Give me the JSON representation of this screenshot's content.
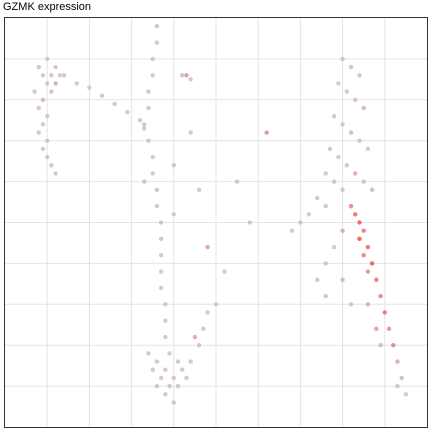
{
  "chart_data": {
    "type": "scatter",
    "title": "GZMK expression",
    "xlabel": "",
    "ylabel": "",
    "xlim": [
      0,
      100
    ],
    "ylim": [
      0,
      100
    ],
    "grid": true,
    "legend": "none",
    "colors": {
      "low": "#c8c4c6",
      "high": "#f0302a",
      "grid": "#e4e4e4",
      "border": "#333333"
    },
    "series": [
      {
        "values": [
          [
            8,
            88,
            0.1
          ],
          [
            9,
            86,
            0.1
          ],
          [
            10,
            84,
            0.1
          ],
          [
            7,
            82,
            0.1
          ],
          [
            9,
            80,
            0.2
          ],
          [
            8,
            78,
            0.1
          ],
          [
            10,
            76,
            0.1
          ],
          [
            9,
            74,
            0.1
          ],
          [
            8,
            72,
            0.1
          ],
          [
            10,
            70,
            0.1
          ],
          [
            11,
            86,
            0.1
          ],
          [
            12,
            84,
            0.3
          ],
          [
            11,
            82,
            0.1
          ],
          [
            10,
            90,
            0.1
          ],
          [
            12,
            88,
            0.1
          ],
          [
            13,
            86,
            0.1
          ],
          [
            9,
            68,
            0.1
          ],
          [
            10,
            66,
            0.1
          ],
          [
            11,
            64,
            0.1
          ],
          [
            12,
            62,
            0.1
          ],
          [
            14,
            86,
            0.1
          ],
          [
            17,
            84,
            0.1
          ],
          [
            20,
            83,
            0.1
          ],
          [
            23,
            81,
            0.1
          ],
          [
            26,
            79,
            0.1
          ],
          [
            29,
            77,
            0.1
          ],
          [
            32,
            75,
            0.1
          ],
          [
            33,
            73,
            0.1
          ],
          [
            36,
            98,
            0.1
          ],
          [
            36,
            94,
            0.1
          ],
          [
            35,
            90,
            0.1
          ],
          [
            35,
            86,
            0.1
          ],
          [
            34,
            82,
            0.1
          ],
          [
            34,
            78,
            0.1
          ],
          [
            33,
            74,
            0.1
          ],
          [
            34,
            70,
            0.1
          ],
          [
            35,
            66,
            0.1
          ],
          [
            35,
            62,
            0.1
          ],
          [
            36,
            58,
            0.1
          ],
          [
            36,
            54,
            0.1
          ],
          [
            37,
            50,
            0.1
          ],
          [
            37,
            46,
            0.1
          ],
          [
            37,
            42,
            0.1
          ],
          [
            37,
            38,
            0.1
          ],
          [
            37,
            34,
            0.1
          ],
          [
            38,
            30,
            0.1
          ],
          [
            38,
            26,
            0.1
          ],
          [
            38,
            22,
            0.1
          ],
          [
            33,
            60,
            0.1
          ],
          [
            40,
            52,
            0.1
          ],
          [
            42,
            86,
            0.1
          ],
          [
            43,
            86,
            0.4
          ],
          [
            44,
            85,
            0.1
          ],
          [
            34,
            18,
            0.1
          ],
          [
            36,
            16,
            0.1
          ],
          [
            38,
            14,
            0.1
          ],
          [
            40,
            12,
            0.1
          ],
          [
            42,
            14,
            0.1
          ],
          [
            37,
            12,
            0.1
          ],
          [
            39,
            10,
            0.1
          ],
          [
            41,
            10,
            0.1
          ],
          [
            43,
            12,
            0.1
          ],
          [
            38,
            8,
            0.1
          ],
          [
            40,
            6,
            0.1
          ],
          [
            36,
            10,
            0.1
          ],
          [
            35,
            14,
            0.1
          ],
          [
            44,
            16,
            0.1
          ],
          [
            46,
            20,
            0.1
          ],
          [
            47,
            24,
            0.1
          ],
          [
            48,
            28,
            0.1
          ],
          [
            45,
            22,
            0.3
          ],
          [
            41,
            16,
            0.1
          ],
          [
            39,
            18,
            0.1
          ],
          [
            62,
            72,
            0.5
          ],
          [
            58,
            50,
            0.1
          ],
          [
            52,
            38,
            0.1
          ],
          [
            48,
            44,
            0.4
          ],
          [
            40,
            64,
            0.1
          ],
          [
            44,
            72,
            0.1
          ],
          [
            46,
            58,
            0.1
          ],
          [
            50,
            30,
            0.1
          ],
          [
            55,
            60,
            0.1
          ],
          [
            80,
            90,
            0.1
          ],
          [
            82,
            88,
            0.1
          ],
          [
            84,
            86,
            0.1
          ],
          [
            79,
            84,
            0.1
          ],
          [
            81,
            82,
            0.1
          ],
          [
            83,
            80,
            0.1
          ],
          [
            85,
            78,
            0.2
          ],
          [
            78,
            76,
            0.1
          ],
          [
            80,
            74,
            0.1
          ],
          [
            82,
            72,
            0.2
          ],
          [
            84,
            70,
            0.1
          ],
          [
            86,
            68,
            0.1
          ],
          [
            77,
            68,
            0.1
          ],
          [
            79,
            66,
            0.1
          ],
          [
            81,
            64,
            0.1
          ],
          [
            83,
            62,
            0.3
          ],
          [
            85,
            60,
            0.1
          ],
          [
            87,
            58,
            0.2
          ],
          [
            76,
            62,
            0.1
          ],
          [
            78,
            60,
            0.1
          ],
          [
            80,
            58,
            0.1
          ],
          [
            74,
            56,
            0.1
          ],
          [
            76,
            54,
            0.1
          ],
          [
            72,
            52,
            0.1
          ],
          [
            70,
            50,
            0.1
          ],
          [
            68,
            48,
            0.1
          ],
          [
            82,
            54,
            0.6
          ],
          [
            83,
            52,
            0.8
          ],
          [
            84,
            50,
            0.9
          ],
          [
            85,
            48,
            0.7
          ],
          [
            84,
            46,
            1.0
          ],
          [
            86,
            44,
            0.8
          ],
          [
            85,
            42,
            0.6
          ],
          [
            87,
            40,
            0.9
          ],
          [
            86,
            38,
            0.5
          ],
          [
            88,
            36,
            0.7
          ],
          [
            89,
            32,
            0.6
          ],
          [
            90,
            28,
            0.7
          ],
          [
            91,
            24,
            0.5
          ],
          [
            92,
            20,
            0.6
          ],
          [
            93,
            16,
            0.3
          ],
          [
            94,
            12,
            0.2
          ],
          [
            93,
            10,
            0.1
          ],
          [
            95,
            8,
            0.1
          ],
          [
            80,
            48,
            0.3
          ],
          [
            78,
            44,
            0.1
          ],
          [
            76,
            40,
            0.1
          ],
          [
            74,
            36,
            0.1
          ],
          [
            76,
            32,
            0.1
          ],
          [
            80,
            36,
            0.2
          ],
          [
            82,
            30,
            0.1
          ],
          [
            86,
            30,
            0.3
          ],
          [
            88,
            24,
            0.4
          ],
          [
            89,
            20,
            0.2
          ]
        ]
      }
    ]
  }
}
